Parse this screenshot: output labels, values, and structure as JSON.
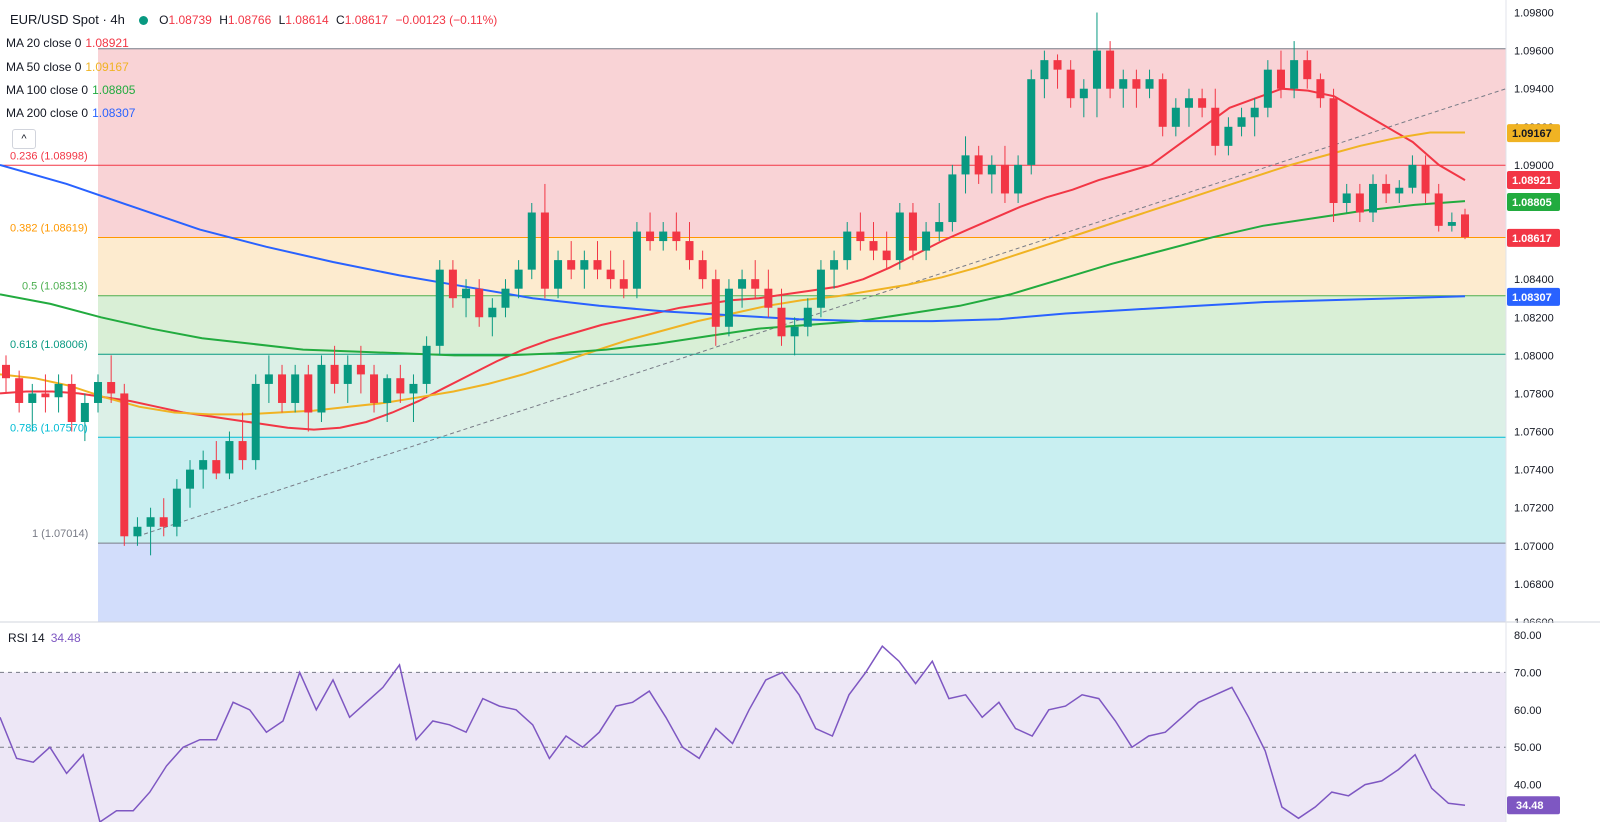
{
  "header": {
    "title": "EUR/USD Spot · 4h",
    "ohlc": [
      {
        "k": "O",
        "v": "1.08739"
      },
      {
        "k": "H",
        "v": "1.08766"
      },
      {
        "k": "L",
        "v": "1.08614"
      },
      {
        "k": "C",
        "v": "1.08617"
      }
    ],
    "change": "−0.00123 (−0.11%)"
  },
  "ma_legend": [
    {
      "label": "MA 20 close 0",
      "value": "1.08921",
      "color": "#f23645"
    },
    {
      "label": "MA 50 close 0",
      "value": "1.09167",
      "color": "#f0b323"
    },
    {
      "label": "MA 100 close 0",
      "value": "1.08805",
      "color": "#22ab3f"
    },
    {
      "label": "MA 200 close 0",
      "value": "1.08307",
      "color": "#2962ff"
    }
  ],
  "collapse_button": "^",
  "fib_levels": [
    {
      "label": "0.236 (1.08998)",
      "price": 1.08998,
      "color": "#f23645",
      "fill": "#f9d3d6"
    },
    {
      "label": "0.382 (1.08619)",
      "price": 1.08619,
      "color": "#ff9800",
      "fill": "#fdebcf"
    },
    {
      "label": "0.5 (1.08313)",
      "price": 1.08313,
      "color": "#4caf50",
      "fill": "#d9efd6"
    },
    {
      "label": "0.618 (1.08006)",
      "price": 1.08006,
      "color": "#089981",
      "fill": "#dcf0e7"
    },
    {
      "label": "0.786 (1.07570)",
      "price": 1.0757,
      "color": "#00bcd4",
      "fill": "#c9eff1"
    },
    {
      "label": "1 (1.07014)",
      "price": 1.07014,
      "color": "#787b86",
      "fill": "#e4e5e7"
    }
  ],
  "fib_extra": {
    "top_price": 1.0961,
    "top_fill": "#f9d3d6",
    "bottom_fill": "#d2ddfb"
  },
  "price_axis": {
    "ticks": [
      "1.09800",
      "1.09600",
      "1.09400",
      "1.09200",
      "1.09000",
      "1.08800",
      "1.08600",
      "1.08400",
      "1.08200",
      "1.08000",
      "1.07800",
      "1.07600",
      "1.07400",
      "1.07200",
      "1.07000",
      "1.06800",
      "1.06600"
    ],
    "min": 1.066,
    "max": 1.0985
  },
  "price_badges": [
    {
      "value": "1.09167",
      "color": "#f0b323",
      "text_color": "#131722",
      "price": 1.09167
    },
    {
      "value": "1.08921",
      "color": "#f23645",
      "text_color": "#ffffff",
      "price": 1.08921
    },
    {
      "value": "1.08805",
      "color": "#22ab3f",
      "text_color": "#ffffff",
      "price": 1.08805
    },
    {
      "value": "1.08617",
      "color": "#f23645",
      "text_color": "#ffffff",
      "price": 1.08617
    },
    {
      "value": "1.08307",
      "color": "#2962ff",
      "text_color": "#ffffff",
      "price": 1.08307
    }
  ],
  "rsi": {
    "label": "RSI 14",
    "value": "34.48",
    "ticks": [
      "80.00",
      "70.00",
      "60.00",
      "50.00",
      "40.00"
    ],
    "min": 30,
    "max": 80,
    "badge": "34.48"
  },
  "chart_data": {
    "type": "candlestick",
    "title": "EUR/USD Spot · 4h",
    "ylim": [
      1.066,
      1.0985
    ],
    "candles": [
      [
        1.0795,
        1.08,
        1.078,
        1.0788
      ],
      [
        1.0788,
        1.0792,
        1.077,
        1.0775
      ],
      [
        1.0775,
        1.0785,
        1.076,
        1.078
      ],
      [
        1.078,
        1.079,
        1.077,
        1.0778
      ],
      [
        1.0778,
        1.079,
        1.077,
        1.0785
      ],
      [
        1.0785,
        1.079,
        1.076,
        1.0765
      ],
      [
        1.0765,
        1.078,
        1.0755,
        1.0775
      ],
      [
        1.0775,
        1.079,
        1.077,
        1.0786
      ],
      [
        1.0786,
        1.08,
        1.0775,
        1.078
      ],
      [
        1.078,
        1.0785,
        1.07,
        1.0705
      ],
      [
        1.0705,
        1.0715,
        1.07,
        1.071
      ],
      [
        1.071,
        1.072,
        1.0695,
        1.0715
      ],
      [
        1.0715,
        1.0725,
        1.0705,
        1.071
      ],
      [
        1.071,
        1.0735,
        1.0705,
        1.073
      ],
      [
        1.073,
        1.0745,
        1.072,
        1.074
      ],
      [
        1.074,
        1.075,
        1.073,
        1.0745
      ],
      [
        1.0745,
        1.0755,
        1.0735,
        1.0738
      ],
      [
        1.0738,
        1.076,
        1.0735,
        1.0755
      ],
      [
        1.0755,
        1.077,
        1.074,
        1.0745
      ],
      [
        1.0745,
        1.079,
        1.074,
        1.0785
      ],
      [
        1.0785,
        1.08,
        1.0775,
        1.079
      ],
      [
        1.079,
        1.0795,
        1.077,
        1.0775
      ],
      [
        1.0775,
        1.0795,
        1.077,
        1.079
      ],
      [
        1.079,
        1.0795,
        1.076,
        1.077
      ],
      [
        1.077,
        1.08,
        1.0765,
        1.0795
      ],
      [
        1.0795,
        1.0805,
        1.078,
        1.0785
      ],
      [
        1.0785,
        1.08,
        1.0775,
        1.0795
      ],
      [
        1.0795,
        1.0805,
        1.078,
        1.079
      ],
      [
        1.079,
        1.0795,
        1.077,
        1.0775
      ],
      [
        1.0775,
        1.079,
        1.0765,
        1.0788
      ],
      [
        1.0788,
        1.0795,
        1.0775,
        1.078
      ],
      [
        1.078,
        1.079,
        1.0765,
        1.0785
      ],
      [
        1.0785,
        1.081,
        1.078,
        1.0805
      ],
      [
        1.0805,
        1.085,
        1.08,
        1.0845
      ],
      [
        1.0845,
        1.085,
        1.0825,
        1.083
      ],
      [
        1.083,
        1.084,
        1.082,
        1.0835
      ],
      [
        1.0835,
        1.084,
        1.0815,
        1.082
      ],
      [
        1.082,
        1.083,
        1.081,
        1.0825
      ],
      [
        1.0825,
        1.084,
        1.082,
        1.0835
      ],
      [
        1.0835,
        1.085,
        1.083,
        1.0845
      ],
      [
        1.0845,
        1.088,
        1.084,
        1.0875
      ],
      [
        1.0875,
        1.089,
        1.083,
        1.0835
      ],
      [
        1.0835,
        1.0855,
        1.083,
        1.085
      ],
      [
        1.085,
        1.086,
        1.084,
        1.0845
      ],
      [
        1.0845,
        1.0855,
        1.0835,
        1.085
      ],
      [
        1.085,
        1.086,
        1.084,
        1.0845
      ],
      [
        1.0845,
        1.0855,
        1.0835,
        1.084
      ],
      [
        1.084,
        1.085,
        1.083,
        1.0835
      ],
      [
        1.0835,
        1.087,
        1.083,
        1.0865
      ],
      [
        1.0865,
        1.0875,
        1.0855,
        1.086
      ],
      [
        1.086,
        1.087,
        1.0855,
        1.0865
      ],
      [
        1.0865,
        1.0875,
        1.0855,
        1.086
      ],
      [
        1.086,
        1.087,
        1.0845,
        1.085
      ],
      [
        1.085,
        1.0855,
        1.0835,
        1.084
      ],
      [
        1.084,
        1.0845,
        1.0805,
        1.0815
      ],
      [
        1.0815,
        1.084,
        1.081,
        1.0835
      ],
      [
        1.0835,
        1.0845,
        1.0825,
        1.084
      ],
      [
        1.084,
        1.085,
        1.083,
        1.0835
      ],
      [
        1.0835,
        1.0845,
        1.082,
        1.0825
      ],
      [
        1.0825,
        1.0835,
        1.0805,
        1.081
      ],
      [
        1.081,
        1.082,
        1.08,
        1.0815
      ],
      [
        1.0815,
        1.083,
        1.081,
        1.0825
      ],
      [
        1.0825,
        1.085,
        1.082,
        1.0845
      ],
      [
        1.0845,
        1.0855,
        1.0835,
        1.085
      ],
      [
        1.085,
        1.087,
        1.0845,
        1.0865
      ],
      [
        1.0865,
        1.0875,
        1.0855,
        1.086
      ],
      [
        1.086,
        1.087,
        1.085,
        1.0855
      ],
      [
        1.0855,
        1.0865,
        1.0845,
        1.085
      ],
      [
        1.085,
        1.088,
        1.0845,
        1.0875
      ],
      [
        1.0875,
        1.088,
        1.085,
        1.0855
      ],
      [
        1.0855,
        1.087,
        1.085,
        1.0865
      ],
      [
        1.0865,
        1.088,
        1.086,
        1.087
      ],
      [
        1.087,
        1.09,
        1.0865,
        1.0895
      ],
      [
        1.0895,
        1.0915,
        1.0885,
        1.0905
      ],
      [
        1.0905,
        1.091,
        1.089,
        1.0895
      ],
      [
        1.0895,
        1.0905,
        1.0885,
        1.09
      ],
      [
        1.09,
        1.091,
        1.088,
        1.0885
      ],
      [
        1.0885,
        1.0905,
        1.088,
        1.09
      ],
      [
        1.09,
        1.095,
        1.0895,
        1.0945
      ],
      [
        1.0945,
        1.096,
        1.0935,
        1.0955
      ],
      [
        1.0955,
        1.0958,
        1.094,
        1.095
      ],
      [
        1.095,
        1.0955,
        1.093,
        1.0935
      ],
      [
        1.0935,
        1.0945,
        1.0925,
        1.094
      ],
      [
        1.094,
        1.098,
        1.0925,
        1.096
      ],
      [
        1.096,
        1.0965,
        1.0935,
        1.094
      ],
      [
        1.094,
        1.095,
        1.093,
        1.0945
      ],
      [
        1.0945,
        1.095,
        1.093,
        1.094
      ],
      [
        1.094,
        1.095,
        1.0935,
        1.0945
      ],
      [
        1.0945,
        1.0948,
        1.0915,
        1.092
      ],
      [
        1.092,
        1.0935,
        1.0915,
        1.093
      ],
      [
        1.093,
        1.094,
        1.092,
        1.0935
      ],
      [
        1.0935,
        1.094,
        1.0925,
        1.093
      ],
      [
        1.093,
        1.094,
        1.0905,
        1.091
      ],
      [
        1.091,
        1.0925,
        1.0905,
        1.092
      ],
      [
        1.092,
        1.093,
        1.0915,
        1.0925
      ],
      [
        1.0925,
        1.0935,
        1.0915,
        1.093
      ],
      [
        1.093,
        1.0955,
        1.0925,
        1.095
      ],
      [
        1.095,
        1.096,
        1.0935,
        1.094
      ],
      [
        1.094,
        1.0965,
        1.0935,
        1.0955
      ],
      [
        1.0955,
        1.096,
        1.094,
        1.0945
      ],
      [
        1.0945,
        1.0948,
        1.093,
        1.0935
      ],
      [
        1.0935,
        1.094,
        1.087,
        1.088
      ],
      [
        1.088,
        1.089,
        1.0875,
        1.0885
      ],
      [
        1.0885,
        1.089,
        1.087,
        1.0875
      ],
      [
        1.0875,
        1.0895,
        1.087,
        1.089
      ],
      [
        1.089,
        1.0895,
        1.088,
        1.0885
      ],
      [
        1.0885,
        1.0892,
        1.088,
        1.0888
      ],
      [
        1.0888,
        1.0905,
        1.0885,
        1.09
      ],
      [
        1.09,
        1.0905,
        1.088,
        1.0885
      ],
      [
        1.0885,
        1.089,
        1.0865,
        1.0868
      ],
      [
        1.0868,
        1.0875,
        1.0865,
        1.087
      ],
      [
        1.0874,
        1.0877,
        1.0861,
        1.0862
      ]
    ],
    "series": [
      {
        "name": "MA 20 close 0",
        "values": [
          1.078,
          1.0781,
          1.0781,
          1.078,
          1.0778,
          1.0776,
          1.0773,
          1.077,
          1.0768,
          1.0766,
          1.0764,
          1.0762,
          1.0761,
          1.0762,
          1.0765,
          1.077,
          1.0776,
          1.0783,
          1.079,
          1.0797,
          1.0803,
          1.0808,
          1.0812,
          1.0816,
          1.0819,
          1.0822,
          1.0825,
          1.0827,
          1.0829,
          1.083,
          1.0832,
          1.0834,
          1.0836,
          1.084,
          1.0846,
          1.0853,
          1.086,
          1.0866,
          1.0872,
          1.0878,
          1.0883,
          1.0887,
          1.0892,
          1.0896,
          1.09,
          1.091,
          1.092,
          1.093,
          1.0935,
          1.094,
          1.0939,
          1.0936,
          1.0928,
          1.092,
          1.0912,
          1.09,
          1.0892
        ]
      },
      {
        "name": "MA 50 close 0",
        "values": [
          1.079,
          1.0788,
          1.0784,
          1.0778,
          1.0773,
          1.077,
          1.0769,
          1.0769,
          1.077,
          1.0771,
          1.0773,
          1.0775,
          1.0778,
          1.0781,
          1.0785,
          1.079,
          1.0796,
          1.0802,
          1.0808,
          1.0813,
          1.0818,
          1.0822,
          1.0826,
          1.0829,
          1.0831,
          1.0834,
          1.0837,
          1.0841,
          1.0846,
          1.0852,
          1.0858,
          1.0864,
          1.087,
          1.0876,
          1.0882,
          1.0888,
          1.0894,
          1.09,
          1.0905,
          1.091,
          1.0914,
          1.0917,
          1.0917
        ]
      },
      {
        "name": "MA 100 close 0",
        "values": [
          1.0832,
          1.0827,
          1.082,
          1.0814,
          1.0809,
          1.0806,
          1.0803,
          1.0802,
          1.0801,
          1.08,
          1.08,
          1.0801,
          1.0803,
          1.0806,
          1.081,
          1.0814,
          1.0816,
          1.0818,
          1.0822,
          1.0826,
          1.0832,
          1.084,
          1.0848,
          1.0855,
          1.0862,
          1.0868,
          1.0872,
          1.0876,
          1.0879,
          1.0881
        ]
      },
      {
        "name": "MA 200 close 0",
        "values": [
          1.09,
          1.089,
          1.0878,
          1.0866,
          1.0857,
          1.0849,
          1.0842,
          1.0836,
          1.083,
          1.0826,
          1.0823,
          1.0821,
          1.0819,
          1.0818,
          1.0818,
          1.0819,
          1.0822,
          1.0824,
          1.0826,
          1.0828,
          1.0829,
          1.083,
          1.0831
        ]
      }
    ],
    "rsi_values": [
      58,
      47,
      46,
      50,
      43,
      48,
      30,
      33,
      33,
      38,
      45,
      50,
      52,
      52,
      62,
      60,
      54,
      57,
      70,
      60,
      68,
      58,
      62,
      66,
      72,
      52,
      57,
      56,
      54,
      63,
      61,
      60,
      56,
      47,
      53,
      50,
      54,
      61,
      62,
      65,
      58,
      50,
      47,
      55,
      51,
      60,
      68,
      70,
      64,
      55,
      53,
      64,
      70,
      77,
      73,
      67,
      73,
      63,
      64,
      58,
      62,
      55,
      53,
      60,
      61,
      64,
      63,
      57,
      50,
      53,
      54,
      58,
      62,
      64,
      66,
      58,
      49,
      34,
      31,
      34,
      38,
      37,
      40,
      41,
      44,
      48,
      39,
      35,
      34.5
    ],
    "trendline": [
      [
        1.0705,
        1.094
      ]
    ]
  }
}
